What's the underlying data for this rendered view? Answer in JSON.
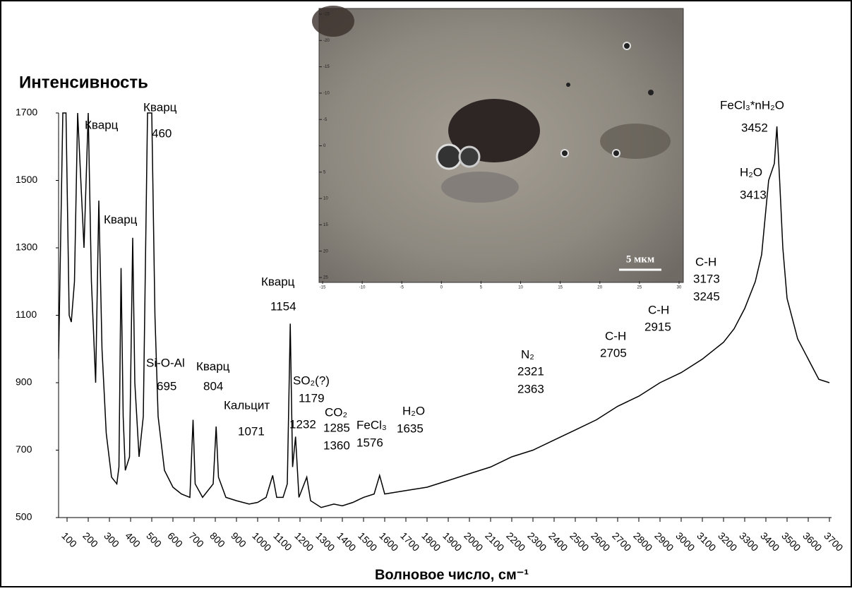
{
  "chart_data": {
    "type": "line",
    "ylabel": "Интенсивность",
    "xlabel": "Волновое число, см⁻¹",
    "color": "#000000",
    "xlim": [
      60,
      3700
    ],
    "ylim": [
      500,
      1700
    ],
    "yticks": [
      500,
      700,
      900,
      1100,
      1300,
      1500,
      1700
    ],
    "xticks": [
      100,
      200,
      300,
      400,
      500,
      600,
      700,
      800,
      900,
      1000,
      1100,
      1200,
      1300,
      1400,
      1500,
      1600,
      1700,
      1800,
      1900,
      2000,
      2100,
      2200,
      2300,
      2400,
      2500,
      2600,
      2700,
      2800,
      2900,
      3000,
      3100,
      3200,
      3300,
      3400,
      3500,
      3600,
      3700
    ],
    "x": [
      60,
      80,
      95,
      110,
      120,
      135,
      150,
      165,
      180,
      200,
      215,
      235,
      250,
      265,
      285,
      310,
      335,
      345,
      355,
      365,
      375,
      395,
      410,
      420,
      440,
      460,
      480,
      500,
      515,
      530,
      560,
      600,
      640,
      680,
      695,
      705,
      740,
      790,
      804,
      815,
      850,
      900,
      960,
      1000,
      1040,
      1071,
      1090,
      1120,
      1140,
      1154,
      1165,
      1179,
      1195,
      1232,
      1250,
      1300,
      1360,
      1400,
      1450,
      1500,
      1550,
      1576,
      1600,
      1700,
      1800,
      1900,
      2000,
      2100,
      2200,
      2300,
      2400,
      2500,
      2600,
      2700,
      2800,
      2900,
      3000,
      3100,
      3200,
      3250,
      3300,
      3350,
      3380,
      3413,
      3440,
      3452,
      3465,
      3480,
      3500,
      3550,
      3600,
      3650,
      3700
    ],
    "values": [
      970,
      1700,
      1700,
      1100,
      1080,
      1200,
      1700,
      1500,
      1300,
      1700,
      1200,
      900,
      1440,
      1000,
      750,
      620,
      600,
      650,
      1240,
      800,
      640,
      680,
      1330,
      900,
      680,
      800,
      1700,
      1700,
      1100,
      800,
      640,
      590,
      570,
      560,
      790,
      600,
      560,
      600,
      770,
      620,
      560,
      550,
      540,
      545,
      560,
      625,
      560,
      560,
      600,
      1075,
      650,
      740,
      560,
      620,
      550,
      530,
      540,
      535,
      545,
      560,
      570,
      625,
      570,
      580,
      590,
      610,
      630,
      650,
      680,
      700,
      730,
      760,
      790,
      830,
      860,
      900,
      930,
      970,
      1020,
      1060,
      1120,
      1200,
      1280,
      1500,
      1550,
      1660,
      1500,
      1300,
      1150,
      1030,
      970,
      910,
      900
    ],
    "annotations": [
      "Кварц",
      "Кварц",
      "460",
      "Кварц",
      "Кварц",
      "1154",
      "Si-O-Al",
      "695",
      "Кварц",
      "804",
      "Кальцит",
      "1071",
      "SO₂(?)",
      "1179",
      "1232",
      "CO₂",
      "1285",
      "1360",
      "FeCl₃",
      "1576",
      "H₂O",
      "1635",
      "N₂",
      "2321",
      "2363",
      "C-H",
      "2705",
      "C-H",
      "2915",
      "C-H",
      "3173",
      "3245",
      "FeCl₃*nH₂O",
      "3452",
      "H₂O",
      "3413"
    ],
    "inset": {
      "xticks": [
        -15,
        -10,
        -5,
        0,
        5,
        10,
        15,
        20,
        25,
        30
      ],
      "yticks": [
        -25,
        -20,
        -15,
        -10,
        -5,
        0,
        5,
        10,
        15,
        20,
        25
      ],
      "scale_label": "5 мкм"
    }
  }
}
